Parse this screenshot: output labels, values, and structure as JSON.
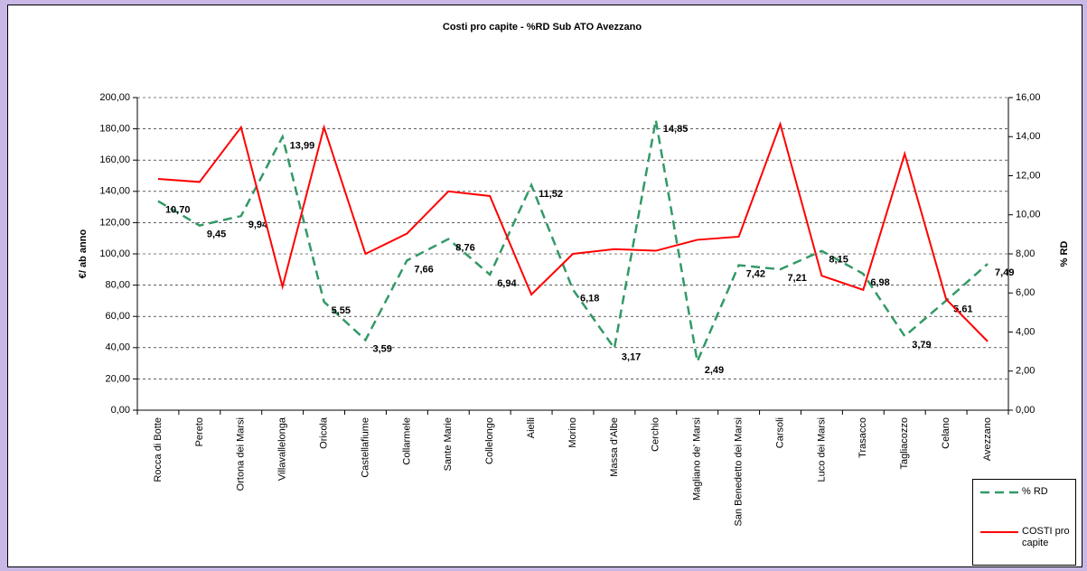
{
  "chart_data": {
    "type": "line",
    "title": "Costi pro capite - %RD Sub ATO Avezzano",
    "y_label": "€/ ab anno",
    "y2_label": "% RD",
    "categories": [
      "Rocca di Botte",
      "Pereto",
      "Ortona dei Marsi",
      "Villavallelonga",
      "Oricola",
      "Castellafiume",
      "Collarmele",
      "Sante Marie",
      "Collelongo",
      "Aielli",
      "Morino",
      "Massa d'Albe",
      "Cerchio",
      "Magliano de' Marsi",
      "San Benedetto dei Marsi",
      "Carsoli",
      "Luco dei Marsi",
      "Trasacco",
      "Tagliacozzo",
      "Celano",
      "Avezzano"
    ],
    "series": [
      {
        "name": "% RD",
        "color": "#339966",
        "dashed": true,
        "axis": "y2",
        "values": [
          10.7,
          9.45,
          9.94,
          13.99,
          5.55,
          3.59,
          7.66,
          8.76,
          6.94,
          11.52,
          6.18,
          3.17,
          14.85,
          2.49,
          7.42,
          7.21,
          8.15,
          6.98,
          3.79,
          5.61,
          7.49
        ],
        "value_labels": [
          "10,70",
          "9,45",
          "9,94",
          "13,99",
          "5,55",
          "3,59",
          "7,66",
          "8,76",
          "6,94",
          "11,52",
          "6,18",
          "3,17",
          "14,85",
          "2,49",
          "7,42",
          "7,21",
          "8,15",
          "6,98",
          "3,79",
          "5,61",
          "7,49"
        ]
      },
      {
        "name": "COSTI pro capite",
        "color": "#ff0000",
        "dashed": false,
        "values": [
          148,
          146,
          181,
          79,
          181,
          100,
          113,
          140,
          137,
          74,
          100,
          103,
          102,
          109,
          111,
          183,
          86,
          77,
          164,
          71,
          44
        ]
      }
    ],
    "ylim": [
      0,
      200
    ],
    "yticks": [
      {
        "value": 0,
        "label": "0,00"
      },
      {
        "value": 20,
        "label": "20,00"
      },
      {
        "value": 40,
        "label": "40,00"
      },
      {
        "value": 60,
        "label": "60,00"
      },
      {
        "value": 80,
        "label": "80,00"
      },
      {
        "value": 100,
        "label": "100,00"
      },
      {
        "value": 120,
        "label": "120,00"
      },
      {
        "value": 140,
        "label": "140,00"
      },
      {
        "value": 160,
        "label": "160,00"
      },
      {
        "value": 180,
        "label": "180,00"
      },
      {
        "value": 200,
        "label": "200,00"
      }
    ],
    "y2lim": [
      0,
      16
    ],
    "y2ticks": [
      {
        "value": 0,
        "label": "0,00"
      },
      {
        "value": 2,
        "label": "2,00"
      },
      {
        "value": 4,
        "label": "4,00"
      },
      {
        "value": 6,
        "label": "6,00"
      },
      {
        "value": 8,
        "label": "8,00"
      },
      {
        "value": 10,
        "label": "10,00"
      },
      {
        "value": 12,
        "label": "12,00"
      },
      {
        "value": 14,
        "label": "14,00"
      },
      {
        "value": 16,
        "label": "16,00"
      }
    ],
    "grid": true
  }
}
